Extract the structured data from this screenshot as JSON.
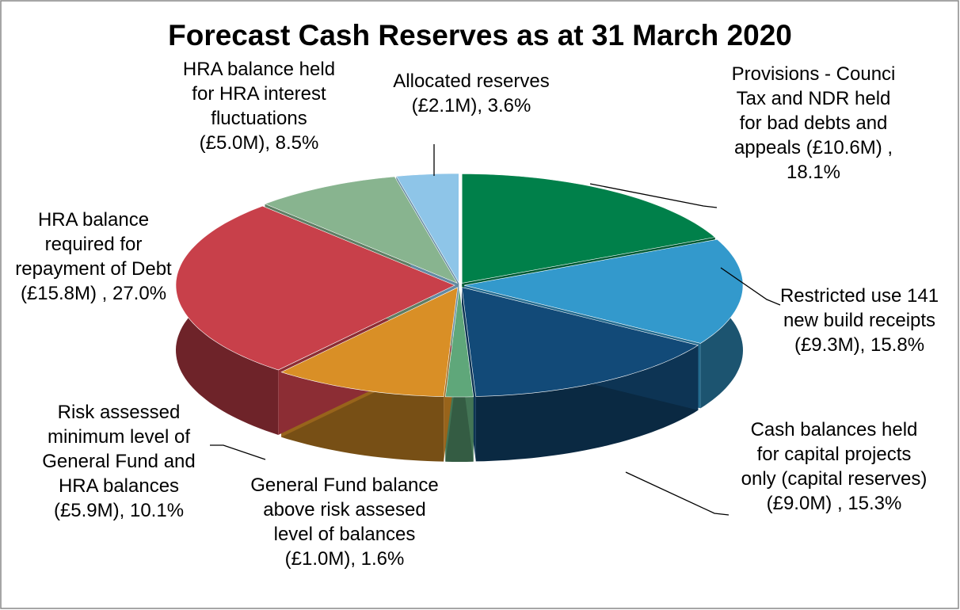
{
  "chart_data": {
    "type": "pie",
    "title": "Forecast Cash Reserves as at 31 March 2020",
    "categories": [
      "Provisions - Counci Tax and NDR held for bad debts and appeals",
      "Restricted use 141 new build receipts",
      "Cash balances held for capital projects only (capital reserves)",
      "General Fund balance above risk assesed level of balances",
      "Risk assessed minimum level of General Fund and HRA balances",
      "HRA balance required for repayment of Debt",
      "HRA balance held for HRA interest fluctuations",
      "Allocated reserves"
    ],
    "amount_labels": [
      "(£10.6M) ,",
      "(£9.3M),",
      "(£9.0M) ,",
      "(£1.0M),",
      "(£5.9M),",
      "(£15.8M) ,",
      "(£5.0M),",
      "(£2.1M),"
    ],
    "values": [
      18.1,
      15.8,
      15.3,
      1.6,
      10.1,
      27.0,
      8.5,
      3.6
    ],
    "value_labels": [
      "18.1%",
      "15.8%",
      "15.3%",
      "1.6%",
      "10.1%",
      "27.0%",
      "8.5%",
      "3.6%"
    ],
    "colors": [
      "#00804a",
      "#3399cc",
      "#124a78",
      "#5fa77a",
      "#d98f26",
      "#c8404a",
      "#88b48f",
      "#8ec5e8"
    ]
  }
}
